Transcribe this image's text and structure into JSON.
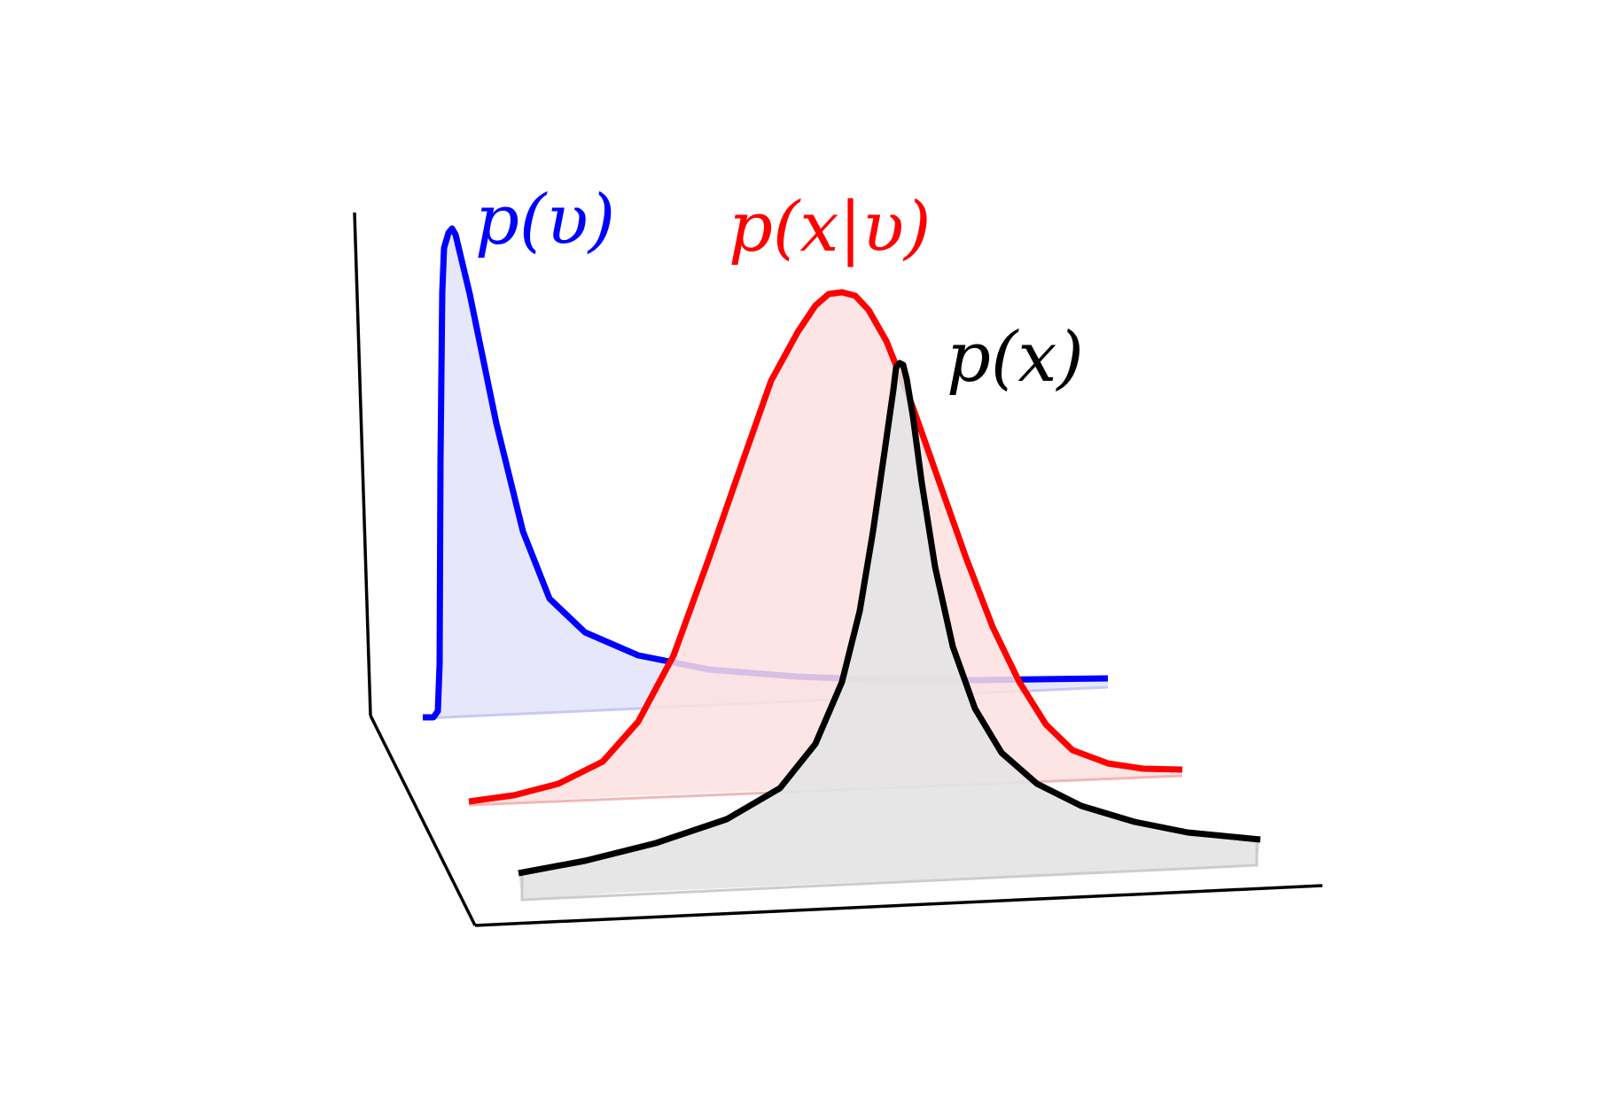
{
  "diagram": {
    "labels": {
      "pv": "p(υ)",
      "pxv": "p(x|υ)",
      "px": "p(x)"
    },
    "colors": {
      "pv": "#0000ff",
      "pv_fill": "#e3e3fb",
      "pxv": "#ff0000",
      "pxv_fill": "#fde0e0",
      "px": "#000000",
      "px_fill": "#e3e3e3",
      "axes": "#000000"
    },
    "curves": [
      {
        "id": "pv",
        "shape": "skewed-peak"
      },
      {
        "id": "pxv",
        "shape": "bell"
      },
      {
        "id": "px",
        "shape": "sharp-peak"
      }
    ]
  }
}
